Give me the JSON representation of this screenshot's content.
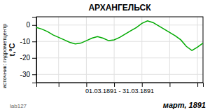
{
  "chart_data": {
    "type": "line",
    "title": "АРХАНГЕЛЬСК",
    "ylabel": "t,°C",
    "xlabel": "01.03.1891  -  31.03.1891",
    "annotations": [
      "март, 1891",
      "источник:  гидрометцентр",
      "lab127"
    ],
    "x": [
      1,
      2,
      3,
      4,
      5,
      6,
      7,
      8,
      9,
      10,
      11,
      12,
      13,
      14,
      15,
      16,
      17,
      18,
      19,
      20,
      21,
      22,
      23,
      24,
      25,
      26,
      27,
      28,
      29,
      30,
      31
    ],
    "values": [
      -1.5,
      -2.5,
      -4.0,
      -6.0,
      -7.5,
      -9.0,
      -10.5,
      -11.5,
      -11.0,
      -9.5,
      -8.0,
      -7.0,
      -8.0,
      -9.5,
      -9.0,
      -7.5,
      -5.5,
      -3.5,
      -1.5,
      1.0,
      2.5,
      1.5,
      -0.5,
      -2.5,
      -4.5,
      -6.5,
      -9.0,
      -13.0,
      -15.5,
      -13.5,
      -11.0
    ],
    "color": "#00aa00",
    "xlim": [
      1,
      31
    ],
    "xticks": [
      5,
      10,
      15,
      20,
      25,
      30
    ],
    "ylim": [
      -35,
      5
    ],
    "yticks": [
      0,
      -10,
      -20,
      -30
    ],
    "grid": true,
    "tick_labels": "y"
  }
}
